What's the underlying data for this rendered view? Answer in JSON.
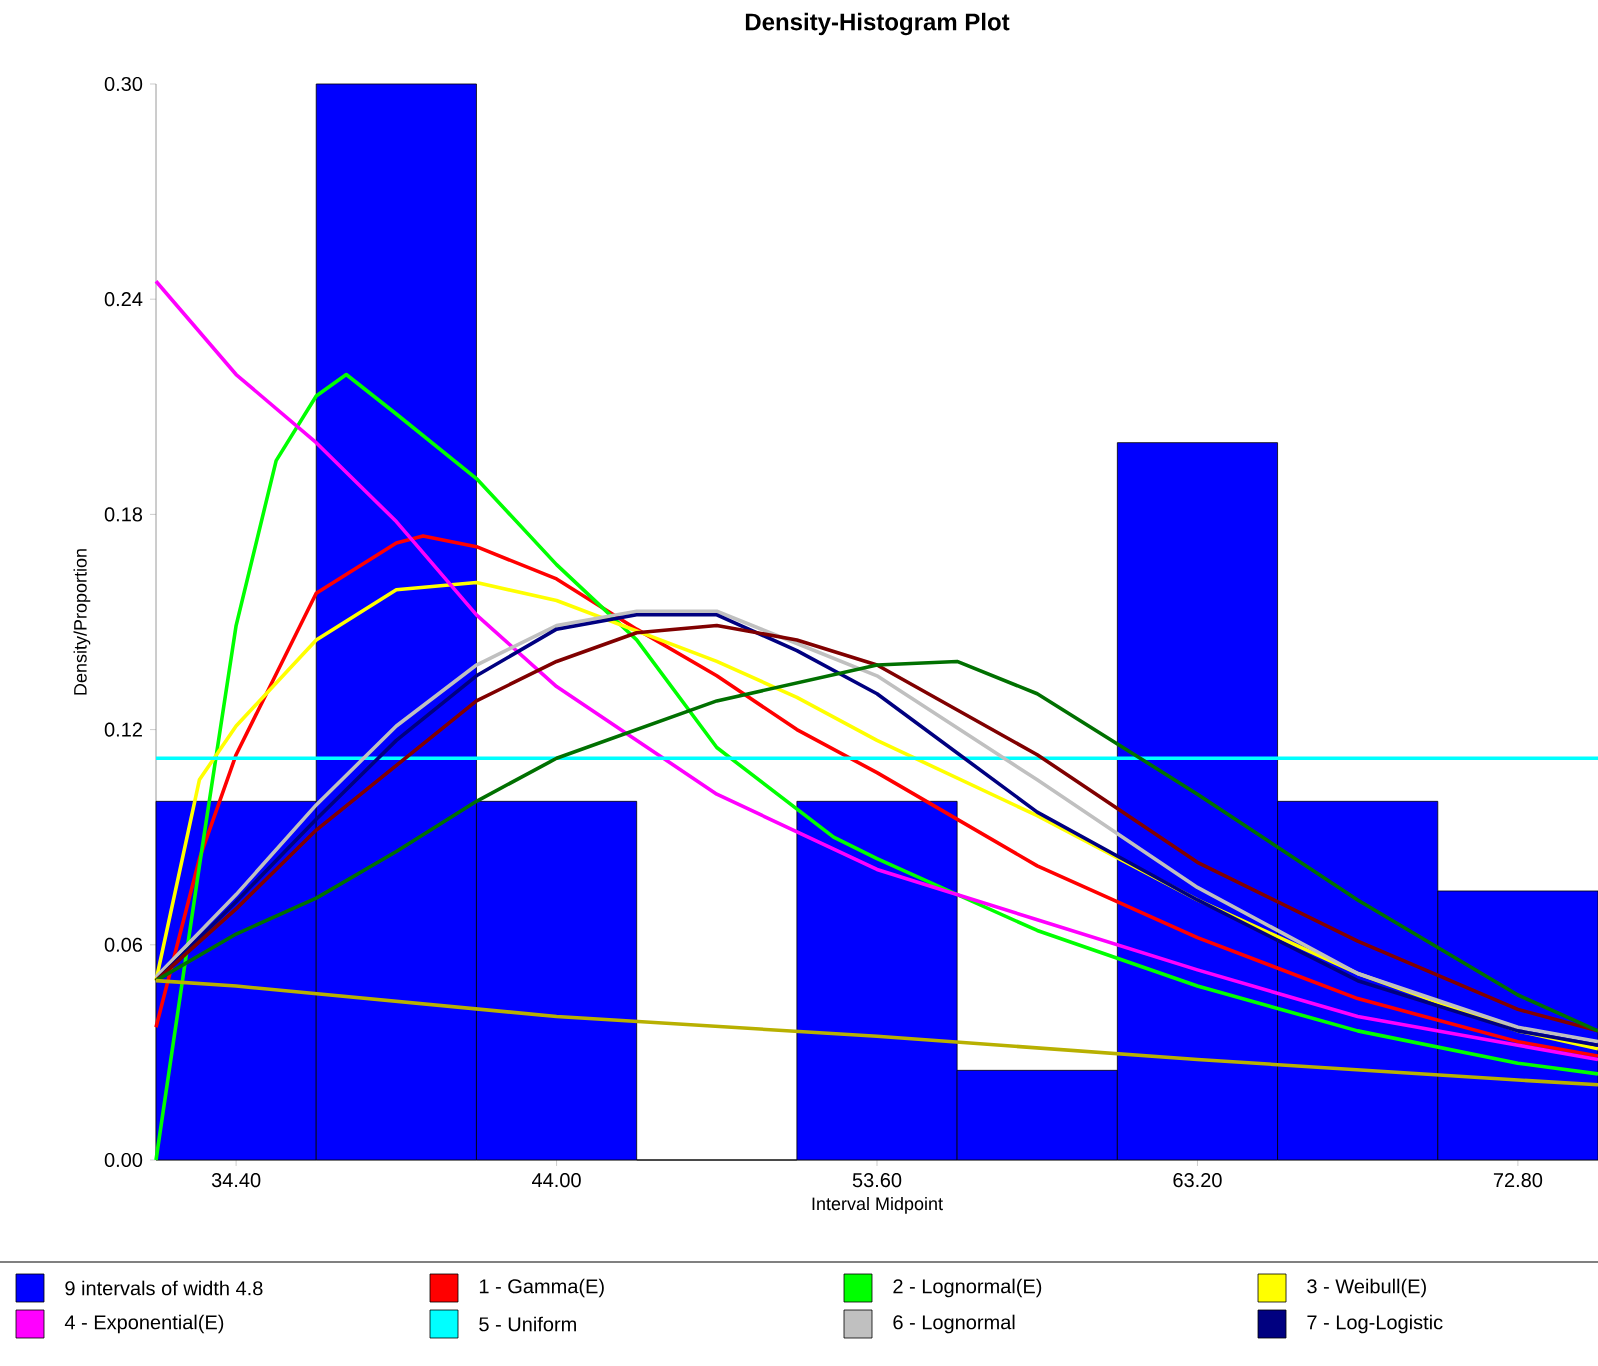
{
  "chart_data": {
    "type": "histogram",
    "title": "Density-Histogram Plot",
    "xlabel": "Interval Midpoint",
    "ylabel": "Density/Proportion",
    "bins": [
      32.0,
      36.8,
      41.6,
      46.4,
      51.2,
      56.0,
      60.8,
      65.6,
      70.4,
      75.2
    ],
    "xlim": [
      32.0,
      75.2
    ],
    "ylim": [
      0,
      0.3
    ],
    "xticks": [
      {
        "value": 34.4,
        "label": "34.40"
      },
      {
        "value": 44.0,
        "label": "44.00"
      },
      {
        "value": 53.6,
        "label": "53.60"
      },
      {
        "value": 63.2,
        "label": "63.20"
      },
      {
        "value": 72.8,
        "label": "72.80"
      }
    ],
    "yticks": [
      {
        "value": 0,
        "label": "0.00"
      },
      {
        "value": 0.06,
        "label": "0.06"
      },
      {
        "value": 0.12,
        "label": "0.12"
      },
      {
        "value": 0.18,
        "label": "0.18"
      },
      {
        "value": 0.24,
        "label": "0.24"
      },
      {
        "value": 0.3,
        "label": "0.30"
      }
    ],
    "legend": "bottom",
    "marker": "none",
    "series": [
      {
        "name": "9 intervals of width 4.8",
        "color": "#0000ff",
        "values": [
          0.1,
          0.3,
          0.1,
          0,
          0.1,
          0.025,
          0.2,
          0.1,
          0.075
        ]
      },
      {
        "type": "line",
        "name": "1 - Gamma(E)",
        "color": "#ff0000",
        "x": [
          32,
          33.3,
          34.4,
          36.8,
          39.2,
          40,
          41.6,
          44,
          46.4,
          48.8,
          51.2,
          53.6,
          58.4,
          63.2,
          68,
          72.8,
          75.2
        ],
        "values": [
          0.037,
          0.084,
          0.113,
          0.158,
          0.172,
          0.174,
          0.171,
          0.162,
          0.148,
          0.135,
          0.12,
          0.108,
          0.082,
          0.062,
          0.045,
          0.033,
          0.029
        ]
      },
      {
        "type": "line",
        "name": "2 - Lognormal(E)",
        "color": "#00ff00",
        "x": [
          32,
          33.3,
          34.4,
          35.6,
          36.8,
          37.7,
          39.2,
          41.6,
          44,
          46.4,
          48.8,
          52.3,
          53.6,
          58.4,
          63.2,
          68,
          72.8,
          75.2
        ],
        "values": [
          0,
          0.082,
          0.149,
          0.195,
          0.213,
          0.219,
          0.208,
          0.19,
          0.166,
          0.145,
          0.115,
          0.09,
          0.084,
          0.064,
          0.0485,
          0.036,
          0.027,
          0.024
        ]
      },
      {
        "type": "line",
        "name": "3 - Weibull(E)",
        "color": "#ffff00",
        "x": [
          32,
          33.3,
          34.4,
          36.8,
          39.2,
          41.6,
          44,
          48.8,
          51.2,
          53.6,
          58.4,
          63.2,
          68,
          72.8,
          75.2
        ],
        "values": [
          0.05,
          0.106,
          0.121,
          0.145,
          0.159,
          0.161,
          0.156,
          0.139,
          0.129,
          0.117,
          0.096,
          0.0725,
          0.052,
          0.036,
          0.031
        ]
      },
      {
        "type": "line",
        "name": "4 - Exponential(E)",
        "color": "#ff00ff",
        "x": [
          32,
          34.4,
          36.8,
          39.2,
          41.6,
          44,
          48.8,
          53.6,
          58.4,
          63.2,
          68,
          72.8,
          75.2
        ],
        "values": [
          0.245,
          0.219,
          0.2,
          0.178,
          0.152,
          0.132,
          0.102,
          0.081,
          0.067,
          0.053,
          0.04,
          0.032,
          0.028
        ]
      },
      {
        "type": "line",
        "name": "5 - Uniform",
        "color": "#00ffff",
        "x": [
          32,
          75.2
        ],
        "values": [
          0.112,
          0.112
        ]
      },
      {
        "type": "line",
        "name": "6 - Lognormal",
        "color": "#c0c0c0",
        "x": [
          32,
          34.4,
          36.8,
          39.2,
          41.6,
          44,
          46.4,
          48.8,
          51.2,
          53.6,
          58.4,
          63.2,
          68,
          72.8,
          75.2
        ],
        "values": [
          0.051,
          0.074,
          0.099,
          0.121,
          0.138,
          0.149,
          0.153,
          0.153,
          0.144,
          0.135,
          0.106,
          0.076,
          0.052,
          0.037,
          0.033
        ]
      },
      {
        "type": "line",
        "name": "7 - Log-Logistic",
        "color": "#000080",
        "x": [
          32,
          34.4,
          36.8,
          39.2,
          41.6,
          44,
          46.4,
          48.8,
          51.2,
          53.6,
          58.4,
          63.2,
          68,
          72.8,
          75.2
        ],
        "values": [
          0.05,
          0.072,
          0.095,
          0.117,
          0.135,
          0.148,
          0.152,
          0.152,
          0.142,
          0.13,
          0.097,
          0.0725,
          0.05,
          0.036,
          0.032
        ]
      },
      {
        "type": "line",
        "color": "#800000",
        "x": [
          32,
          34.4,
          36.8,
          39.2,
          41.6,
          44,
          46.4,
          48.8,
          51.2,
          53.6,
          58.4,
          63.2,
          68,
          72.8,
          75.2
        ],
        "values": [
          0.05,
          0.07,
          0.092,
          0.11,
          0.128,
          0.139,
          0.147,
          0.149,
          0.145,
          0.138,
          0.113,
          0.083,
          0.061,
          0.042,
          0.036
        ]
      },
      {
        "type": "line",
        "color": "#007000",
        "x": [
          32,
          34.4,
          36.8,
          39.2,
          41.6,
          44,
          48.8,
          53.6,
          56,
          58.4,
          63.2,
          68,
          72.8,
          75.2
        ],
        "values": [
          0.05,
          0.063,
          0.073,
          0.086,
          0.1,
          0.112,
          0.128,
          0.138,
          0.139,
          0.13,
          0.102,
          0.0725,
          0.046,
          0.036
        ]
      },
      {
        "type": "line",
        "color": "#b8b000",
        "x": [
          32,
          34.4,
          44,
          53.6,
          63.2,
          72.8,
          75.2
        ],
        "values": [
          0.05,
          0.0485,
          0.04,
          0.0345,
          0.028,
          0.0223,
          0.021
        ]
      }
    ]
  }
}
